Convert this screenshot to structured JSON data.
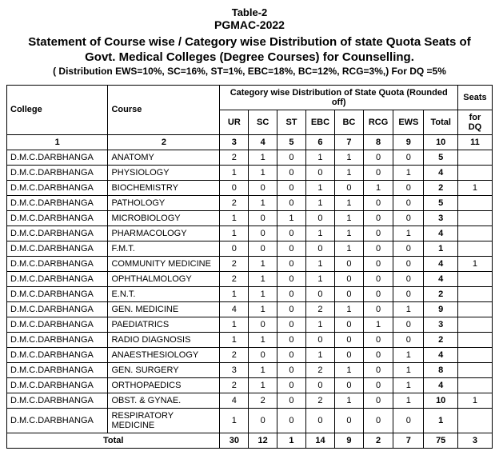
{
  "header": {
    "table_label": "Table-2",
    "pgmac": "PGMAC-2022",
    "title_line1": "Statement of Course wise / Category wise Distribution of state Quota Seats of",
    "title_line2": "Govt. Medical Colleges (Degree Courses) for Counselling.",
    "subnote": "( Distribution EWS=10%, SC=16%, ST=1%, EBC=18%, BC=12%, RCG=3%,) For DQ  =5%"
  },
  "columns": {
    "college": "College",
    "course": "Course",
    "dist_header": "Category wise Distribution of State Quota (Rounded off)",
    "seats": "Seats",
    "ur": "UR",
    "sc": "SC",
    "st": "ST",
    "ebc": "EBC",
    "bc": "BC",
    "rcg": "RCG",
    "ews": "EWS",
    "total": "Total",
    "for_dq": "for DQ"
  },
  "colnums": {
    "c1": "1",
    "c2": "2",
    "c3": "3",
    "c4": "4",
    "c5": "5",
    "c6": "6",
    "c7": "7",
    "c8": "8",
    "c9": "9",
    "c10": "10",
    "c11": "11"
  },
  "college_name": "D.M.C.DARBHANGA",
  "rows": [
    {
      "course": "ANATOMY",
      "ur": "2",
      "sc": "1",
      "st": "0",
      "ebc": "1",
      "bc": "1",
      "rcg": "0",
      "ews": "0",
      "total": "5",
      "dq": ""
    },
    {
      "course": "PHYSIOLOGY",
      "ur": "1",
      "sc": "1",
      "st": "0",
      "ebc": "0",
      "bc": "1",
      "rcg": "0",
      "ews": "1",
      "total": "4",
      "dq": ""
    },
    {
      "course": "BIOCHEMISTRY",
      "ur": "0",
      "sc": "0",
      "st": "0",
      "ebc": "1",
      "bc": "0",
      "rcg": "1",
      "ews": "0",
      "total": "2",
      "dq": "1"
    },
    {
      "course": "PATHOLOGY",
      "ur": "2",
      "sc": "1",
      "st": "0",
      "ebc": "1",
      "bc": "1",
      "rcg": "0",
      "ews": "0",
      "total": "5",
      "dq": ""
    },
    {
      "course": "MICROBIOLOGY",
      "ur": "1",
      "sc": "0",
      "st": "1",
      "ebc": "0",
      "bc": "1",
      "rcg": "0",
      "ews": "0",
      "total": "3",
      "dq": ""
    },
    {
      "course": "PHARMACOLOGY",
      "ur": "1",
      "sc": "0",
      "st": "0",
      "ebc": "1",
      "bc": "1",
      "rcg": "0",
      "ews": "1",
      "total": "4",
      "dq": ""
    },
    {
      "course": "F.M.T.",
      "ur": "0",
      "sc": "0",
      "st": "0",
      "ebc": "0",
      "bc": "1",
      "rcg": "0",
      "ews": "0",
      "total": "1",
      "dq": ""
    },
    {
      "course": "COMMUNITY MEDICINE",
      "ur": "2",
      "sc": "1",
      "st": "0",
      "ebc": "1",
      "bc": "0",
      "rcg": "0",
      "ews": "0",
      "total": "4",
      "dq": "1"
    },
    {
      "course": "OPHTHALMOLOGY",
      "ur": "2",
      "sc": "1",
      "st": "0",
      "ebc": "1",
      "bc": "0",
      "rcg": "0",
      "ews": "0",
      "total": "4",
      "dq": ""
    },
    {
      "course": "E.N.T.",
      "ur": "1",
      "sc": "1",
      "st": "0",
      "ebc": "0",
      "bc": "0",
      "rcg": "0",
      "ews": "0",
      "total": "2",
      "dq": ""
    },
    {
      "course": "GEN. MEDICINE",
      "ur": "4",
      "sc": "1",
      "st": "0",
      "ebc": "2",
      "bc": "1",
      "rcg": "0",
      "ews": "1",
      "total": "9",
      "dq": ""
    },
    {
      "course": "PAEDIATRICS",
      "ur": "1",
      "sc": "0",
      "st": "0",
      "ebc": "1",
      "bc": "0",
      "rcg": "1",
      "ews": "0",
      "total": "3",
      "dq": ""
    },
    {
      "course": "RADIO DIAGNOSIS",
      "ur": "1",
      "sc": "1",
      "st": "0",
      "ebc": "0",
      "bc": "0",
      "rcg": "0",
      "ews": "0",
      "total": "2",
      "dq": ""
    },
    {
      "course": "ANAESTHESIOLOGY",
      "ur": "2",
      "sc": "0",
      "st": "0",
      "ebc": "1",
      "bc": "0",
      "rcg": "0",
      "ews": "1",
      "total": "4",
      "dq": ""
    },
    {
      "course": "GEN. SURGERY",
      "ur": "3",
      "sc": "1",
      "st": "0",
      "ebc": "2",
      "bc": "1",
      "rcg": "0",
      "ews": "1",
      "total": "8",
      "dq": ""
    },
    {
      "course": "ORTHOPAEDICS",
      "ur": "2",
      "sc": "1",
      "st": "0",
      "ebc": "0",
      "bc": "0",
      "rcg": "0",
      "ews": "1",
      "total": "4",
      "dq": ""
    },
    {
      "course": "OBST. & GYNAE.",
      "ur": "4",
      "sc": "2",
      "st": "0",
      "ebc": "2",
      "bc": "1",
      "rcg": "0",
      "ews": "1",
      "total": "10",
      "dq": "1"
    },
    {
      "course": "RESPIRATORY MEDICINE",
      "ur": "1",
      "sc": "0",
      "st": "0",
      "ebc": "0",
      "bc": "0",
      "rcg": "0",
      "ews": "0",
      "total": "1",
      "dq": ""
    }
  ],
  "totals": {
    "label": "Total",
    "ur": "30",
    "sc": "12",
    "st": "1",
    "ebc": "14",
    "bc": "9",
    "rcg": "2",
    "ews": "7",
    "total": "75",
    "dq": "3"
  }
}
